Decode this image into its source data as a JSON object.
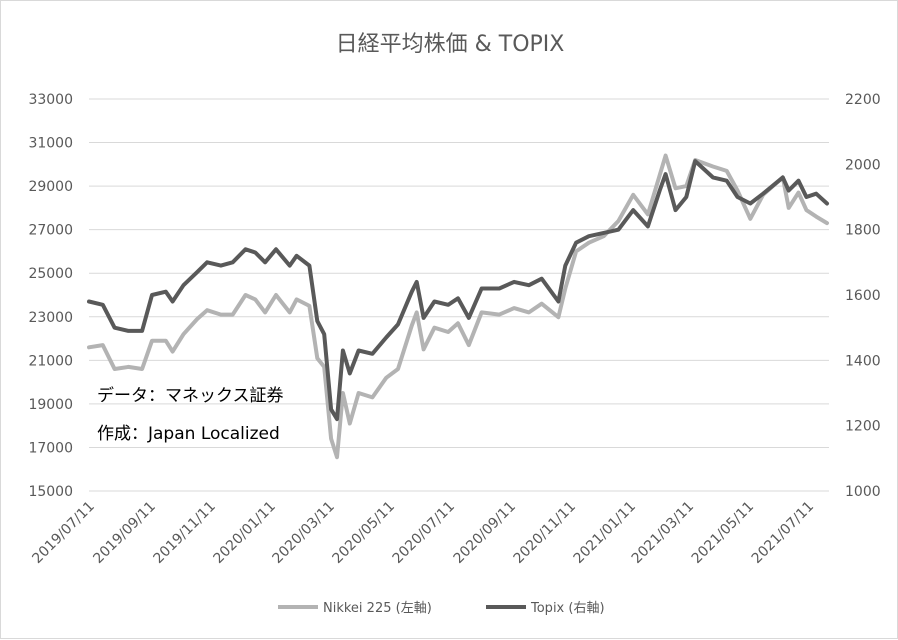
{
  "chart_data": {
    "type": "line",
    "title": "日経平均株価 & TOPIX",
    "y_left": {
      "min": 15000,
      "max": 33000,
      "ticks": [
        "15000",
        "17000",
        "19000",
        "21000",
        "23000",
        "25000",
        "27000",
        "29000",
        "31000",
        "33000"
      ]
    },
    "y_right": {
      "min": 1000,
      "max": 2200,
      "ticks": [
        "1000",
        "1200",
        "1400",
        "1600",
        "1800",
        "2000",
        "2200"
      ]
    },
    "x_start": "2019-07-11",
    "x_end": "2021-08-01",
    "x_ticks": [
      "2019/07/11",
      "2019/09/11",
      "2019/11/11",
      "2020/01/11",
      "2020/03/11",
      "2020/05/11",
      "2020/07/11",
      "2020/09/11",
      "2020/11/11",
      "2021/01/11",
      "2021/03/11",
      "2021/05/11",
      "2021/07/11"
    ],
    "grid": true,
    "legend_position": "bottom",
    "annotations": [
      "データ：マネックス証券",
      "作成：Japan Localized"
    ],
    "series": [
      {
        "name": "Nikkei 225 (左軸)",
        "axis": "left",
        "color": "#b3b3b3",
        "points": [
          [
            "2019-07-11",
            21600
          ],
          [
            "2019-07-25",
            21700
          ],
          [
            "2019-08-06",
            20600
          ],
          [
            "2019-08-20",
            20700
          ],
          [
            "2019-09-03",
            20600
          ],
          [
            "2019-09-13",
            21900
          ],
          [
            "2019-09-27",
            21900
          ],
          [
            "2019-10-04",
            21400
          ],
          [
            "2019-10-15",
            22200
          ],
          [
            "2019-10-29",
            22900
          ],
          [
            "2019-11-08",
            23300
          ],
          [
            "2019-11-22",
            23100
          ],
          [
            "2019-12-04",
            23100
          ],
          [
            "2019-12-17",
            24000
          ],
          [
            "2019-12-27",
            23800
          ],
          [
            "2020-01-06",
            23200
          ],
          [
            "2020-01-17",
            24000
          ],
          [
            "2020-01-31",
            23200
          ],
          [
            "2020-02-07",
            23800
          ],
          [
            "2020-02-20",
            23500
          ],
          [
            "2020-02-28",
            21100
          ],
          [
            "2020-03-06",
            20700
          ],
          [
            "2020-03-13",
            17400
          ],
          [
            "2020-03-19",
            16550
          ],
          [
            "2020-03-25",
            19500
          ],
          [
            "2020-04-01",
            18100
          ],
          [
            "2020-04-10",
            19500
          ],
          [
            "2020-04-24",
            19300
          ],
          [
            "2020-05-08",
            20200
          ],
          [
            "2020-05-20",
            20600
          ],
          [
            "2020-06-03",
            22600
          ],
          [
            "2020-06-08",
            23200
          ],
          [
            "2020-06-15",
            21500
          ],
          [
            "2020-06-26",
            22500
          ],
          [
            "2020-07-10",
            22300
          ],
          [
            "2020-07-20",
            22700
          ],
          [
            "2020-07-31",
            21700
          ],
          [
            "2020-08-13",
            23200
          ],
          [
            "2020-08-31",
            23100
          ],
          [
            "2020-09-15",
            23400
          ],
          [
            "2020-09-30",
            23200
          ],
          [
            "2020-10-13",
            23600
          ],
          [
            "2020-10-30",
            22980
          ],
          [
            "2020-11-06",
            24300
          ],
          [
            "2020-11-17",
            26000
          ],
          [
            "2020-11-30",
            26400
          ],
          [
            "2020-12-15",
            26700
          ],
          [
            "2020-12-30",
            27400
          ],
          [
            "2021-01-14",
            28600
          ],
          [
            "2021-01-29",
            27700
          ],
          [
            "2021-02-10",
            29500
          ],
          [
            "2021-02-16",
            30400
          ],
          [
            "2021-02-26",
            28900
          ],
          [
            "2021-03-09",
            29000
          ],
          [
            "2021-03-18",
            30200
          ],
          [
            "2021-04-05",
            29900
          ],
          [
            "2021-04-19",
            29700
          ],
          [
            "2021-04-30",
            28800
          ],
          [
            "2021-05-13",
            27500
          ],
          [
            "2021-05-26",
            28600
          ],
          [
            "2021-06-15",
            29400
          ],
          [
            "2021-06-21",
            28000
          ],
          [
            "2021-07-01",
            28700
          ],
          [
            "2021-07-09",
            27900
          ],
          [
            "2021-07-19",
            27600
          ],
          [
            "2021-07-30",
            27300
          ]
        ]
      },
      {
        "name": "Topix (右軸)",
        "axis": "right",
        "color": "#595959",
        "points": [
          [
            "2019-07-11",
            1580
          ],
          [
            "2019-07-25",
            1570
          ],
          [
            "2019-08-06",
            1500
          ],
          [
            "2019-08-20",
            1490
          ],
          [
            "2019-09-03",
            1490
          ],
          [
            "2019-09-13",
            1600
          ],
          [
            "2019-09-27",
            1610
          ],
          [
            "2019-10-04",
            1580
          ],
          [
            "2019-10-15",
            1630
          ],
          [
            "2019-10-29",
            1670
          ],
          [
            "2019-11-08",
            1700
          ],
          [
            "2019-11-22",
            1690
          ],
          [
            "2019-12-04",
            1700
          ],
          [
            "2019-12-17",
            1740
          ],
          [
            "2019-12-27",
            1730
          ],
          [
            "2020-01-06",
            1700
          ],
          [
            "2020-01-17",
            1740
          ],
          [
            "2020-01-31",
            1690
          ],
          [
            "2020-02-07",
            1720
          ],
          [
            "2020-02-20",
            1690
          ],
          [
            "2020-02-28",
            1520
          ],
          [
            "2020-03-06",
            1480
          ],
          [
            "2020-03-13",
            1250
          ],
          [
            "2020-03-19",
            1220
          ],
          [
            "2020-03-25",
            1430
          ],
          [
            "2020-04-01",
            1360
          ],
          [
            "2020-04-10",
            1430
          ],
          [
            "2020-04-24",
            1420
          ],
          [
            "2020-05-08",
            1470
          ],
          [
            "2020-05-20",
            1510
          ],
          [
            "2020-06-03",
            1610
          ],
          [
            "2020-06-08",
            1640
          ],
          [
            "2020-06-15",
            1530
          ],
          [
            "2020-06-26",
            1580
          ],
          [
            "2020-07-10",
            1570
          ],
          [
            "2020-07-20",
            1590
          ],
          [
            "2020-07-31",
            1530
          ],
          [
            "2020-08-13",
            1620
          ],
          [
            "2020-08-31",
            1620
          ],
          [
            "2020-09-15",
            1640
          ],
          [
            "2020-09-30",
            1630
          ],
          [
            "2020-10-13",
            1650
          ],
          [
            "2020-10-30",
            1580
          ],
          [
            "2020-11-06",
            1690
          ],
          [
            "2020-11-17",
            1760
          ],
          [
            "2020-11-30",
            1780
          ],
          [
            "2020-12-15",
            1790
          ],
          [
            "2020-12-30",
            1800
          ],
          [
            "2021-01-14",
            1860
          ],
          [
            "2021-01-29",
            1810
          ],
          [
            "2021-02-10",
            1920
          ],
          [
            "2021-02-16",
            1970
          ],
          [
            "2021-02-26",
            1860
          ],
          [
            "2021-03-09",
            1900
          ],
          [
            "2021-03-18",
            2010
          ],
          [
            "2021-04-05",
            1960
          ],
          [
            "2021-04-19",
            1950
          ],
          [
            "2021-04-30",
            1900
          ],
          [
            "2021-05-13",
            1880
          ],
          [
            "2021-05-26",
            1910
          ],
          [
            "2021-06-15",
            1960
          ],
          [
            "2021-06-21",
            1920
          ],
          [
            "2021-07-01",
            1950
          ],
          [
            "2021-07-09",
            1900
          ],
          [
            "2021-07-19",
            1910
          ],
          [
            "2021-07-30",
            1880
          ]
        ]
      }
    ]
  }
}
